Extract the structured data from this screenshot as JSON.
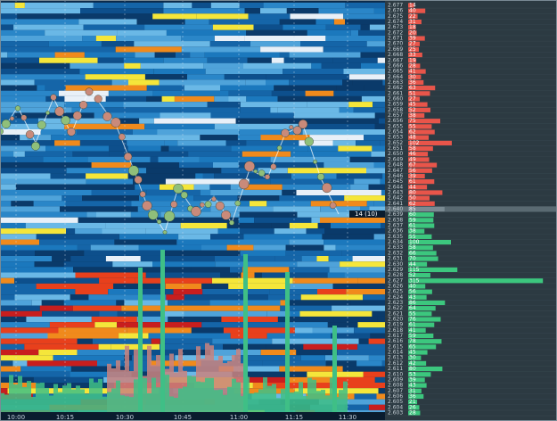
{
  "time_axis": [
    "10:00",
    "10:15",
    "10:30",
    "10:45",
    "11:00",
    "11:15",
    "11:30"
  ],
  "last_trade": "14 (10)",
  "ladder": {
    "current_price": "2.640",
    "current_size": 85,
    "asks": [
      {
        "price": "2.677",
        "size": 14
      },
      {
        "price": "2.676",
        "size": 40
      },
      {
        "price": "2.675",
        "size": 22
      },
      {
        "price": "2.674",
        "size": 31
      },
      {
        "price": "2.673",
        "size": 18
      },
      {
        "price": "2.672",
        "size": 20
      },
      {
        "price": "2.671",
        "size": 39
      },
      {
        "price": "2.670",
        "size": 27
      },
      {
        "price": "2.669",
        "size": 25
      },
      {
        "price": "2.668",
        "size": 33
      },
      {
        "price": "2.667",
        "size": 19
      },
      {
        "price": "2.666",
        "size": 28
      },
      {
        "price": "2.665",
        "size": 41
      },
      {
        "price": "2.664",
        "size": 30
      },
      {
        "price": "2.663",
        "size": 36
      },
      {
        "price": "2.662",
        "size": 63
      },
      {
        "price": "2.661",
        "size": 51
      },
      {
        "price": "2.660",
        "size": 27
      },
      {
        "price": "2.659",
        "size": 45
      },
      {
        "price": "2.658",
        "size": 52
      },
      {
        "price": "2.657",
        "size": 38
      },
      {
        "price": "2.656",
        "size": 75
      },
      {
        "price": "2.655",
        "size": 55
      },
      {
        "price": "2.654",
        "size": 62
      },
      {
        "price": "2.653",
        "size": 48
      },
      {
        "price": "2.652",
        "size": 102
      },
      {
        "price": "2.651",
        "size": 58
      },
      {
        "price": "2.650",
        "size": 46
      },
      {
        "price": "2.649",
        "size": 49
      },
      {
        "price": "2.648",
        "size": 67
      },
      {
        "price": "2.647",
        "size": 56
      },
      {
        "price": "2.646",
        "size": 39
      },
      {
        "price": "2.645",
        "size": 61
      },
      {
        "price": "2.644",
        "size": 44
      },
      {
        "price": "2.643",
        "size": 80
      },
      {
        "price": "2.642",
        "size": 50
      },
      {
        "price": "2.641",
        "size": 62
      }
    ],
    "bids": [
      {
        "price": "2.639",
        "size": 60
      },
      {
        "price": "2.638",
        "size": 59
      },
      {
        "price": "2.637",
        "size": 61
      },
      {
        "price": "2.636",
        "size": 38
      },
      {
        "price": "2.635",
        "size": 55
      },
      {
        "price": "2.634",
        "size": 100
      },
      {
        "price": "2.633",
        "size": 58
      },
      {
        "price": "2.632",
        "size": 66
      },
      {
        "price": "2.631",
        "size": 70
      },
      {
        "price": "2.630",
        "size": 44
      },
      {
        "price": "2.629",
        "size": 115
      },
      {
        "price": "2.628",
        "size": 52
      },
      {
        "price": "2.627",
        "size": 315
      },
      {
        "price": "2.626",
        "size": 40
      },
      {
        "price": "2.625",
        "size": 56
      },
      {
        "price": "2.624",
        "size": 43
      },
      {
        "price": "2.623",
        "size": 86
      },
      {
        "price": "2.622",
        "size": 64
      },
      {
        "price": "2.621",
        "size": 55
      },
      {
        "price": "2.620",
        "size": 76
      },
      {
        "price": "2.619",
        "size": 61
      },
      {
        "price": "2.618",
        "size": 41
      },
      {
        "price": "2.617",
        "size": 59
      },
      {
        "price": "2.616",
        "size": 78
      },
      {
        "price": "2.615",
        "size": 65
      },
      {
        "price": "2.614",
        "size": 45
      },
      {
        "price": "2.613",
        "size": 30
      },
      {
        "price": "2.612",
        "size": 42
      },
      {
        "price": "2.611",
        "size": 80
      },
      {
        "price": "2.610",
        "size": 53
      },
      {
        "price": "2.609",
        "size": 39
      },
      {
        "price": "2.608",
        "size": 43
      },
      {
        "price": "2.607",
        "size": 31
      },
      {
        "price": "2.606",
        "size": 36
      },
      {
        "price": "2.605",
        "size": 21
      },
      {
        "price": "2.604",
        "size": 26
      },
      {
        "price": "2.603",
        "size": 28
      }
    ]
  }
}
